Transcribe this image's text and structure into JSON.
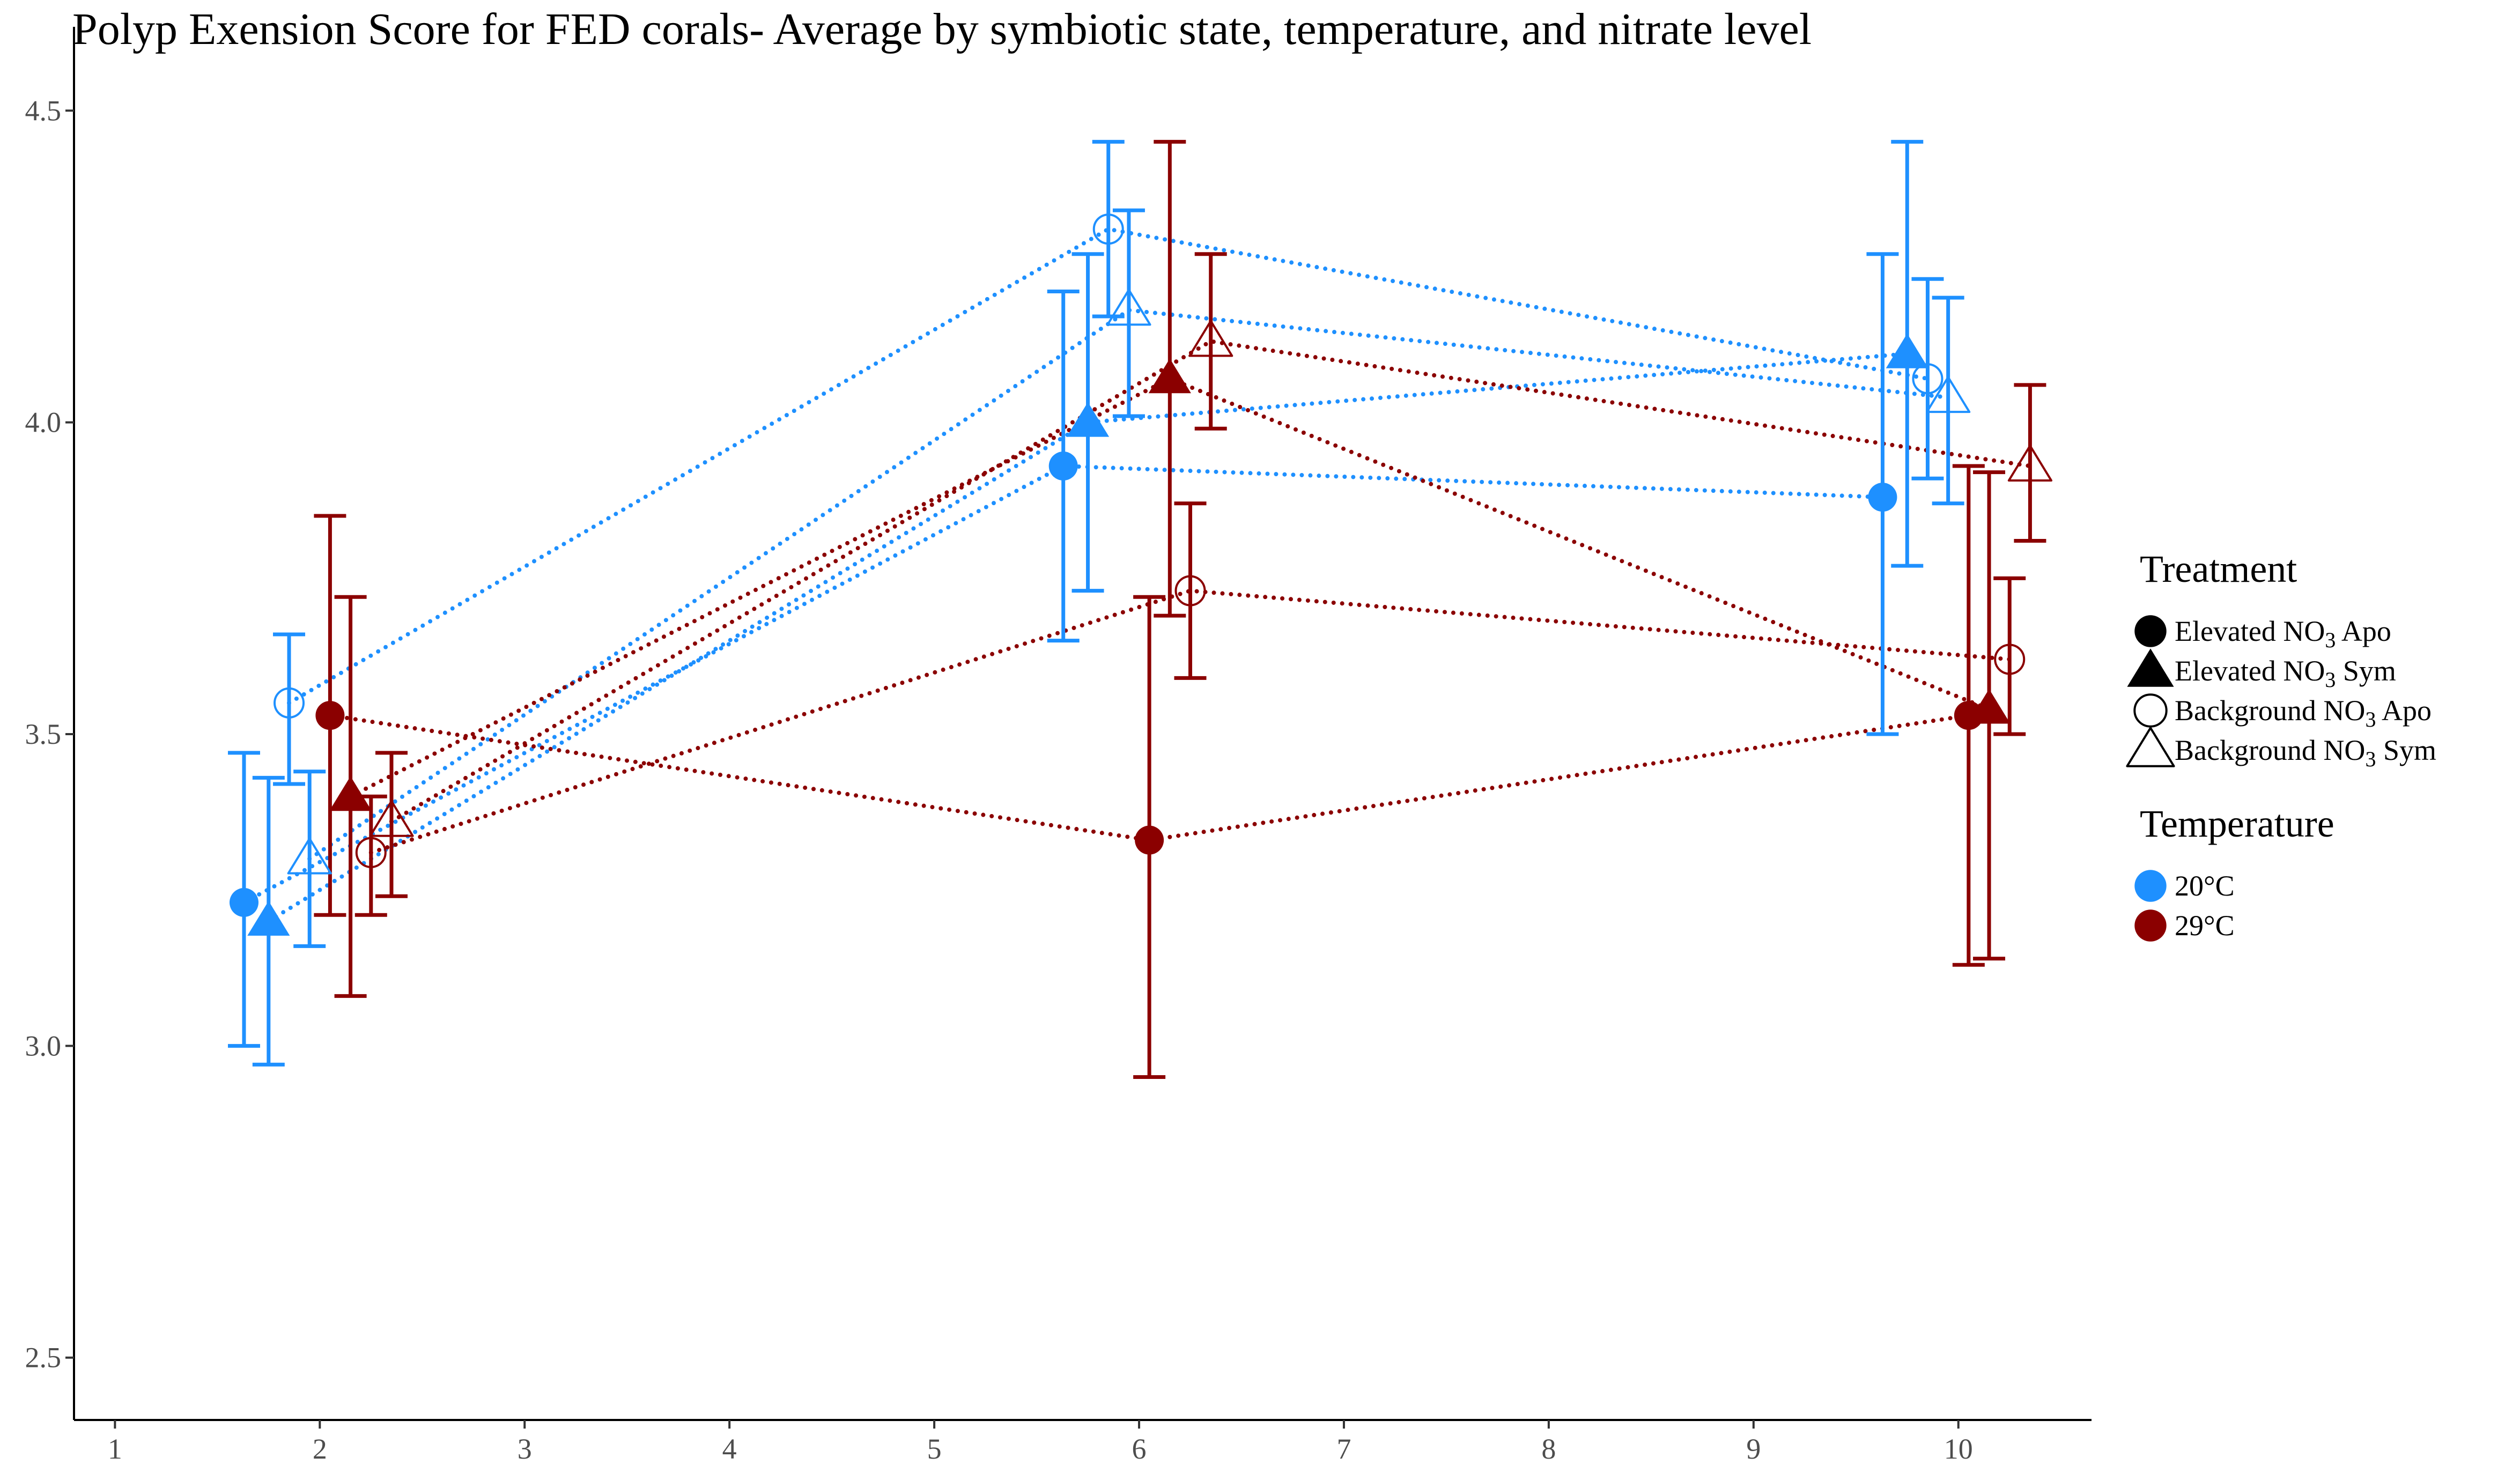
{
  "chart_data": {
    "type": "scatter",
    "title": "Polyp Exension Score for FED corals- Average by symbiotic state, temperature, and nitrate level",
    "xlabel": "",
    "ylabel": "",
    "xlim": [
      0.8,
      10.65
    ],
    "ylim": [
      2.4,
      4.6
    ],
    "x_ticks": [
      1,
      2,
      3,
      4,
      5,
      6,
      7,
      8,
      9,
      10
    ],
    "y_ticks": [
      2.5,
      3.0,
      3.5,
      4.0,
      4.5
    ],
    "y_tick_labels": [
      "2.5",
      "3.0",
      "3.5",
      "4.0",
      "4.5"
    ],
    "grid": false,
    "line_style": "dotted",
    "legend_position": "right",
    "legends": [
      {
        "title": "Treatment",
        "entries": [
          {
            "shape": "circle-filled",
            "label_main": "Elevated NO",
            "label_sub": "3",
            "label_rest": " Apo"
          },
          {
            "shape": "triangle-filled",
            "label_main": "Elevated NO",
            "label_sub": "3",
            "label_rest": " Sym"
          },
          {
            "shape": "circle-open",
            "label_main": "Background NO",
            "label_sub": "3",
            "label_rest": " Apo"
          },
          {
            "shape": "triangle-open",
            "label_main": "Background NO",
            "label_sub": "3",
            "label_rest": " Sym"
          }
        ]
      },
      {
        "title": "Temperature",
        "entries": [
          {
            "shape": "circle-filled",
            "color": "#1E90FF",
            "label": "20°C"
          },
          {
            "shape": "circle-filled",
            "color": "#8B0000",
            "label": "29°C"
          }
        ]
      }
    ],
    "series": [
      {
        "temperature": "20°C",
        "treatment": "Elevated NO3 Apo",
        "color": "#1E90FF",
        "shape": "circle-filled",
        "x": [
          1.63,
          5.63,
          9.63
        ],
        "y": [
          3.23,
          3.93,
          3.88
        ],
        "ymin": [
          3.0,
          3.65,
          3.5
        ],
        "ymax": [
          3.47,
          4.21,
          4.27
        ]
      },
      {
        "temperature": "20°C",
        "treatment": "Elevated NO3 Sym",
        "color": "#1E90FF",
        "shape": "triangle-filled",
        "x": [
          1.75,
          5.75,
          9.75
        ],
        "y": [
          3.2,
          4.0,
          4.11
        ],
        "ymin": [
          2.97,
          3.73,
          3.77
        ],
        "ymax": [
          3.43,
          4.27,
          4.45
        ]
      },
      {
        "temperature": "20°C",
        "treatment": "Background NO3 Apo",
        "color": "#1E90FF",
        "shape": "circle-open",
        "x": [
          1.85,
          5.85,
          9.85
        ],
        "y": [
          3.55,
          4.31,
          4.07
        ],
        "ymin": [
          3.42,
          4.17,
          3.91
        ],
        "ymax": [
          3.66,
          4.45,
          4.23
        ]
      },
      {
        "temperature": "20°C",
        "treatment": "Background NO3 Sym",
        "color": "#1E90FF",
        "shape": "triangle-open",
        "x": [
          1.95,
          5.95,
          9.95
        ],
        "y": [
          3.3,
          4.18,
          4.04
        ],
        "ymin": [
          3.16,
          4.01,
          3.87
        ],
        "ymax": [
          3.44,
          4.34,
          4.2
        ]
      },
      {
        "temperature": "29°C",
        "treatment": "Elevated NO3 Apo",
        "color": "#8B0000",
        "shape": "circle-filled",
        "x": [
          2.05,
          6.05,
          10.05
        ],
        "y": [
          3.53,
          3.33,
          3.53
        ],
        "ymin": [
          3.21,
          2.95,
          3.13
        ],
        "ymax": [
          3.85,
          3.72,
          3.93
        ]
      },
      {
        "temperature": "29°C",
        "treatment": "Elevated NO3 Sym",
        "color": "#8B0000",
        "shape": "triangle-filled",
        "x": [
          2.15,
          6.15,
          10.15
        ],
        "y": [
          3.4,
          4.07,
          3.54
        ],
        "ymin": [
          3.08,
          3.69,
          3.14
        ],
        "ymax": [
          3.72,
          4.45,
          3.92
        ]
      },
      {
        "temperature": "29°C",
        "treatment": "Background NO3 Apo",
        "color": "#8B0000",
        "shape": "circle-open",
        "x": [
          2.25,
          6.25,
          10.25
        ],
        "y": [
          3.31,
          3.73,
          3.62
        ],
        "ymin": [
          3.21,
          3.59,
          3.5
        ],
        "ymax": [
          3.4,
          3.87,
          3.75
        ]
      },
      {
        "temperature": "29°C",
        "treatment": "Background NO3 Sym",
        "color": "#8B0000",
        "shape": "triangle-open",
        "x": [
          2.35,
          6.35,
          10.35
        ],
        "y": [
          3.36,
          4.13,
          3.93
        ],
        "ymin": [
          3.24,
          3.99,
          3.81
        ],
        "ymax": [
          3.47,
          4.27,
          4.06
        ]
      }
    ]
  }
}
